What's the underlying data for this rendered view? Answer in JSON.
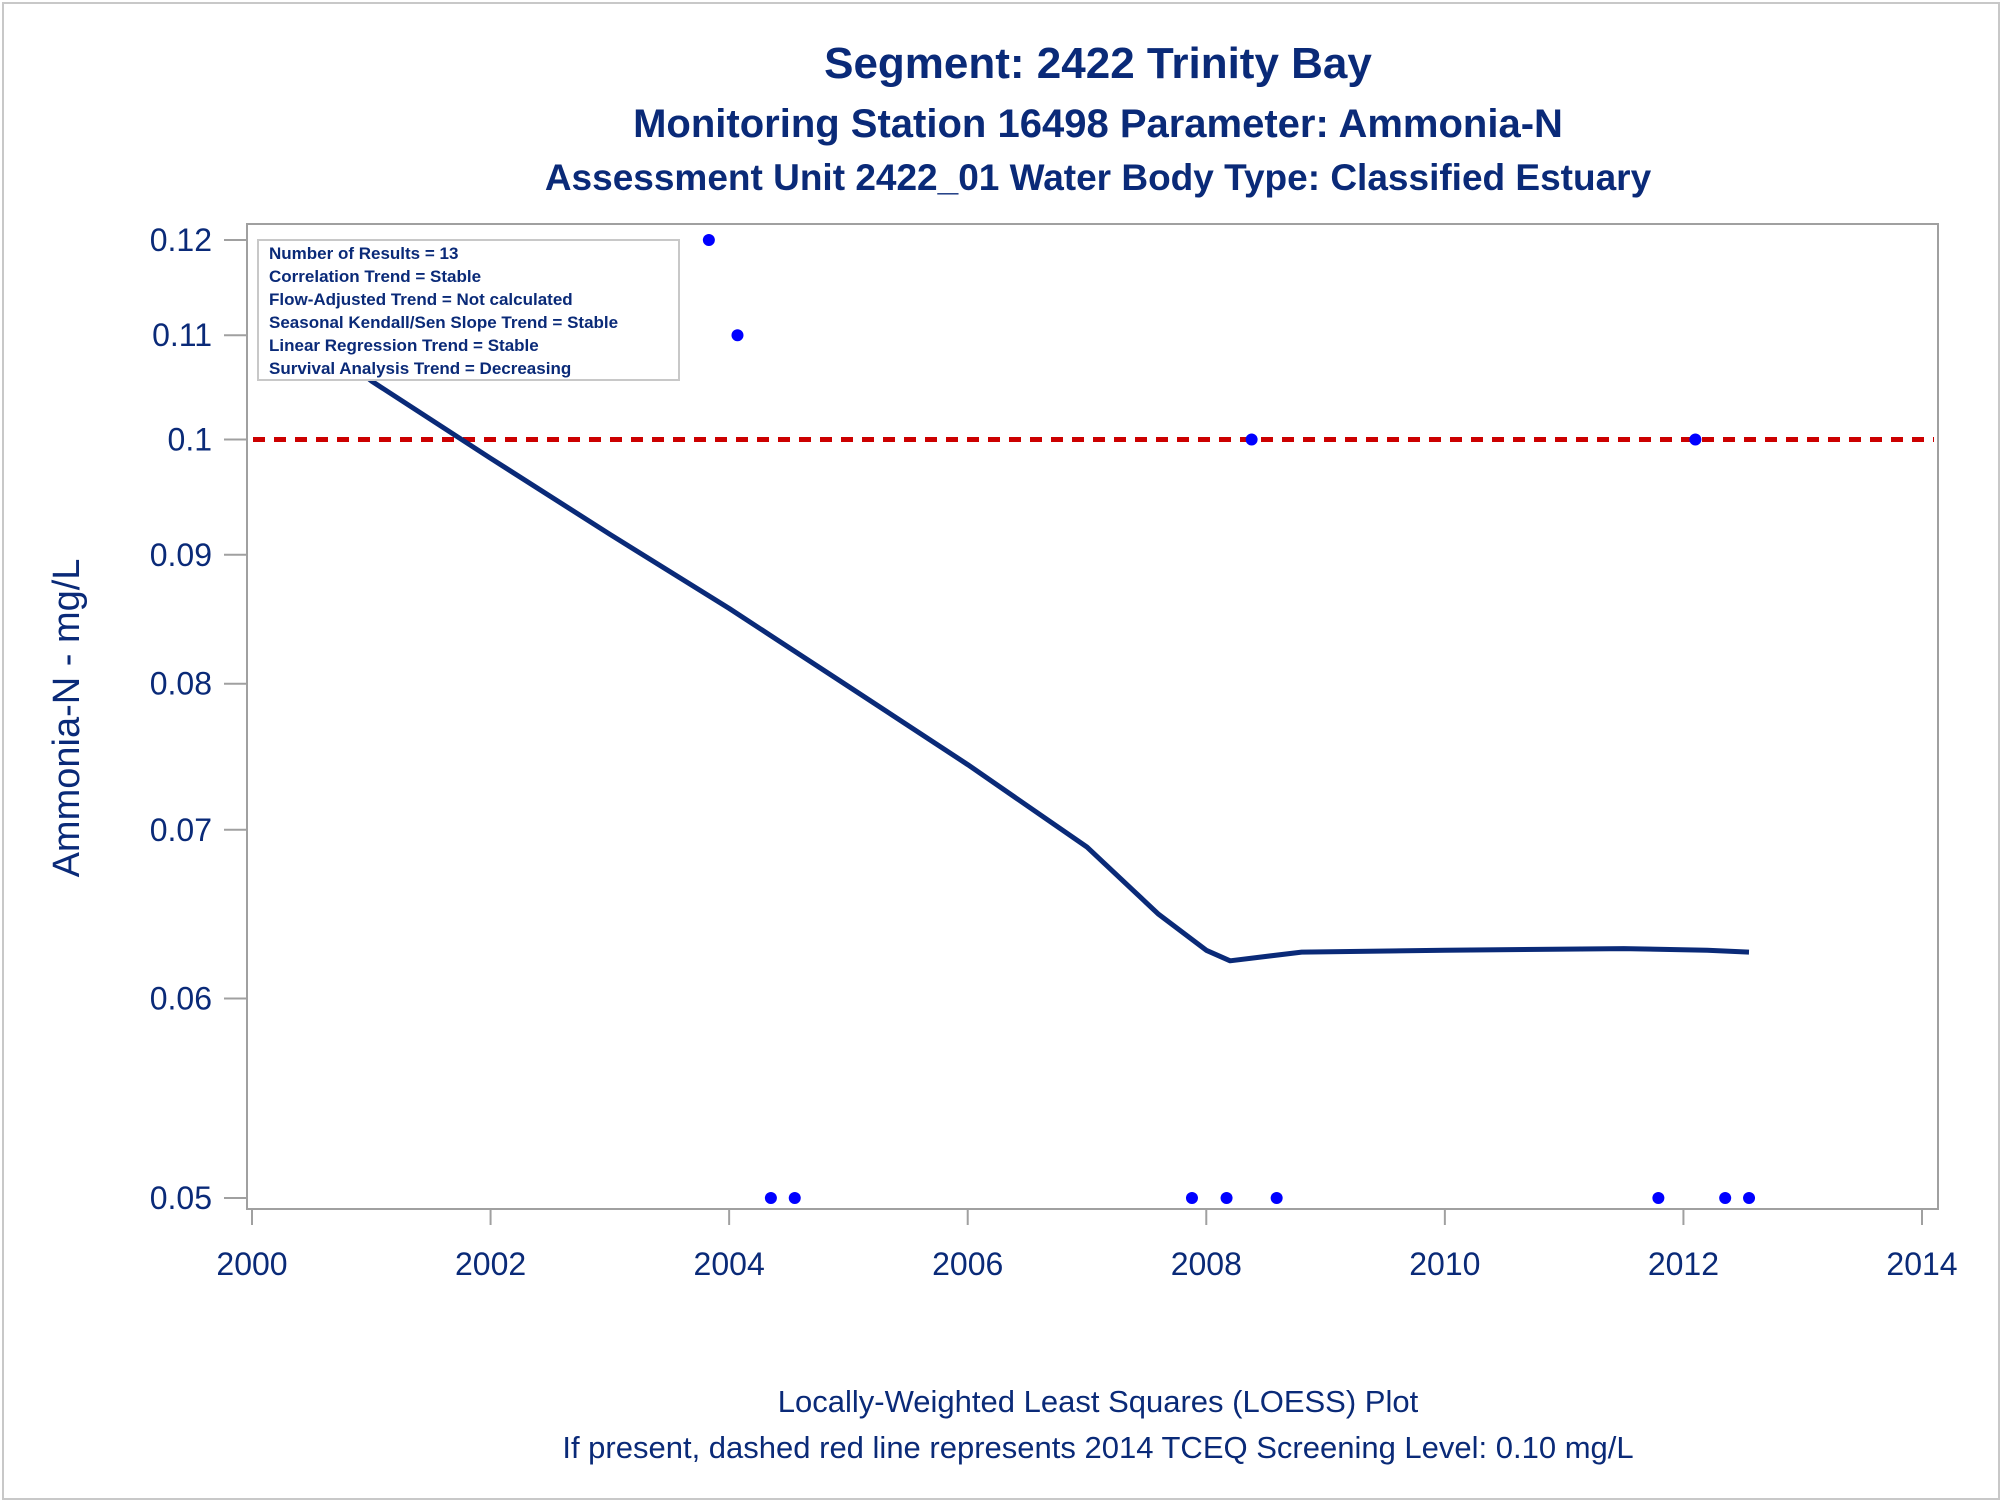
{
  "title_line1": "Segment: 2422  Trinity Bay",
  "title_line2": "Monitoring Station 16498 Parameter: Ammonia-N",
  "title_line3": "Assessment Unit 2422_01   Water Body Type: Classified Estuary",
  "footer_line1": "Locally-Weighted Least Squares (LOESS) Plot",
  "footer_line2": "If present, dashed red line represents 2014 TCEQ Screening Level: 0.10 mg/L",
  "info_box": [
    "Number of Results = 13",
    "Correlation Trend = Stable",
    "Flow-Adjusted Trend = Not calculated",
    "Seasonal Kendall/Sen Slope Trend = Stable",
    "Linear Regression Trend = Stable",
    "Survival Analysis Trend = Decreasing"
  ],
  "chart_data": {
    "type": "scatter",
    "ylabel": "Ammonia-N - mg/L",
    "xlabel": "",
    "y_scale": "log",
    "xlim": [
      2000,
      2014
    ],
    "ylim": [
      0.05,
      0.12
    ],
    "x_ticks": [
      "2000",
      "2002",
      "2004",
      "2006",
      "2008",
      "2010",
      "2012",
      "2014"
    ],
    "y_ticks": [
      "0.05",
      "0.06",
      "0.07",
      "0.08",
      "0.09",
      "0.1",
      "0.11",
      "0.12"
    ],
    "points": [
      {
        "x": 2000.55,
        "y": 0.11
      },
      {
        "x": 2003.83,
        "y": 0.12
      },
      {
        "x": 2004.07,
        "y": 0.11
      },
      {
        "x": 2004.35,
        "y": 0.05
      },
      {
        "x": 2004.55,
        "y": 0.05
      },
      {
        "x": 2007.88,
        "y": 0.05
      },
      {
        "x": 2008.17,
        "y": 0.05
      },
      {
        "x": 2008.38,
        "y": 0.1
      },
      {
        "x": 2008.59,
        "y": 0.05
      },
      {
        "x": 2011.79,
        "y": 0.05
      },
      {
        "x": 2012.1,
        "y": 0.1
      },
      {
        "x": 2012.35,
        "y": 0.05
      },
      {
        "x": 2012.55,
        "y": 0.05
      }
    ],
    "loess": [
      {
        "x": 2000.55,
        "y": 0.11
      },
      {
        "x": 2001.0,
        "y": 0.1055
      },
      {
        "x": 2002.0,
        "y": 0.0983
      },
      {
        "x": 2003.0,
        "y": 0.0917
      },
      {
        "x": 2004.0,
        "y": 0.0857
      },
      {
        "x": 2005.0,
        "y": 0.0798
      },
      {
        "x": 2006.0,
        "y": 0.0743
      },
      {
        "x": 2007.0,
        "y": 0.0689
      },
      {
        "x": 2007.6,
        "y": 0.0648
      },
      {
        "x": 2008.0,
        "y": 0.0627
      },
      {
        "x": 2008.2,
        "y": 0.0621
      },
      {
        "x": 2008.8,
        "y": 0.0626
      },
      {
        "x": 2010.0,
        "y": 0.0627
      },
      {
        "x": 2011.5,
        "y": 0.0628
      },
      {
        "x": 2012.2,
        "y": 0.0627
      },
      {
        "x": 2012.55,
        "y": 0.0626
      }
    ],
    "screening_level": 0.1,
    "colors": {
      "points": "#0000ff",
      "loess": "#0a2a78",
      "screening_line": "#cc0000",
      "text": "#0a2a78",
      "axis": "#a0a0a0"
    }
  }
}
